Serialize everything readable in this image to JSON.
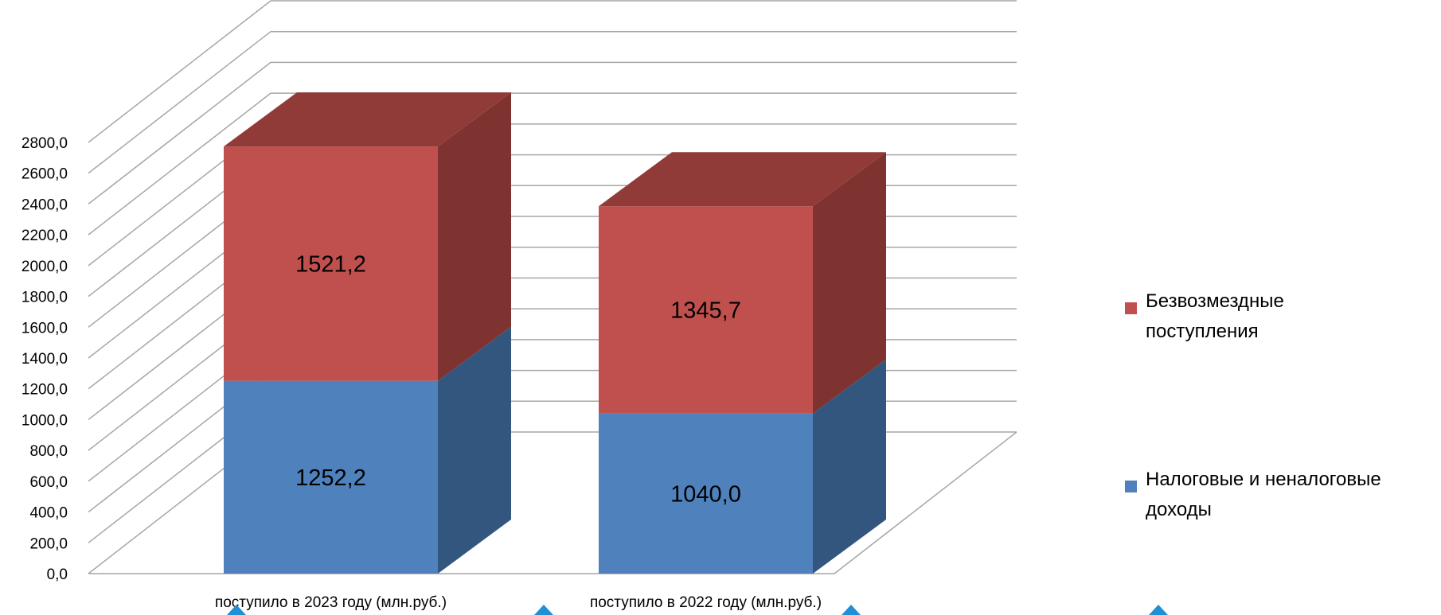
{
  "chart_data": {
    "type": "bar",
    "stacked": true,
    "three_d": true,
    "categories": [
      "поступило в 2023 году (млн.руб.)",
      "поступило в 2022 году (млн.руб.)"
    ],
    "series": [
      {
        "name": "Налоговые и неналоговые доходы",
        "values": [
          1252.2,
          1040.0
        ],
        "value_labels": [
          "1252,2",
          "1040,0"
        ],
        "color": "#4f81bd",
        "side_color": "#33567f",
        "top_color": "#3d6696"
      },
      {
        "name": "Безвозмездные поступления",
        "values": [
          1521.2,
          1345.7
        ],
        "value_labels": [
          "1521,2",
          "1345,7"
        ],
        "color": "#c0504d",
        "side_color": "#7f3331",
        "top_color": "#913b39"
      }
    ],
    "y_ticks": [
      0,
      200,
      400,
      600,
      800,
      1000,
      1200,
      1400,
      1600,
      1800,
      2000,
      2200,
      2400,
      2600,
      2800
    ],
    "y_tick_labels": [
      "0,0",
      "200,0",
      "400,0",
      "600,0",
      "800,0",
      "1000,0",
      "1200,0",
      "1400,0",
      "1600,0",
      "1800,0",
      "2000,0",
      "2200,0",
      "2400,0",
      "2600,0",
      "2800,0"
    ],
    "ylim": [
      0,
      2800
    ],
    "title": "",
    "xlabel": "",
    "ylabel": "",
    "grid": true,
    "legend_position": "right",
    "gridline_color": "#a6a6a6",
    "marker_color": "#1f8fd6"
  }
}
